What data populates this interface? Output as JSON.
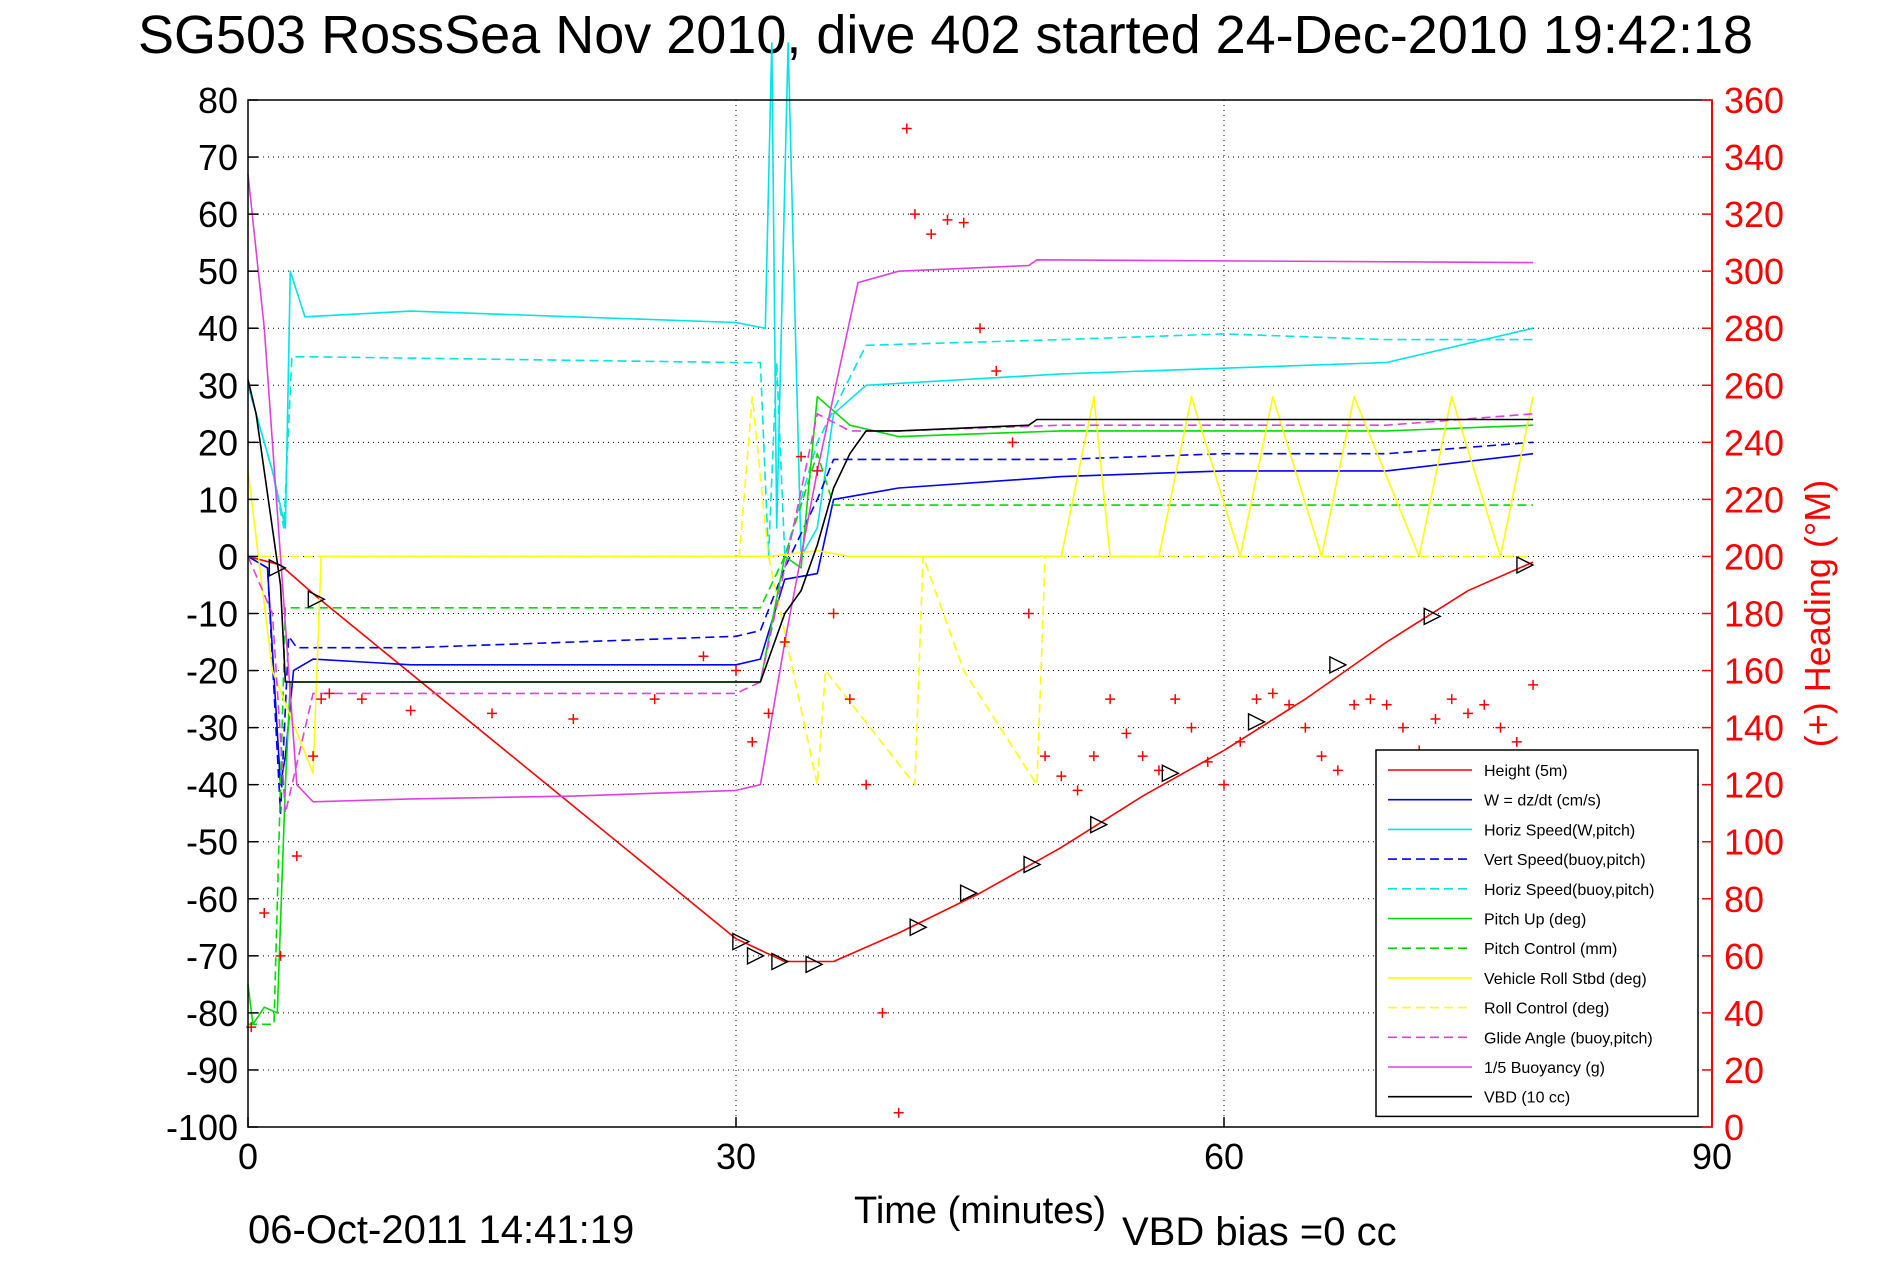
{
  "chart_data": {
    "type": "line",
    "title": "SG503 RossSea Nov 2010, dive 402 started 24-Dec-2010 19:42:18",
    "xlabel": "Time (minutes)",
    "ylabel_right": "(+) Heading (°M)",
    "xlim": [
      0,
      90
    ],
    "ylim": [
      -100,
      80
    ],
    "ylim_right": [
      0,
      360
    ],
    "x_ticks": [
      0,
      30,
      60,
      90
    ],
    "y_ticks": [
      80,
      70,
      60,
      50,
      40,
      30,
      20,
      10,
      0,
      -10,
      -20,
      -30,
      -40,
      -50,
      -60,
      -70,
      -80,
      -90,
      -100
    ],
    "y_right_ticks": [
      360,
      340,
      320,
      300,
      280,
      260,
      240,
      220,
      200,
      180,
      160,
      140,
      120,
      100,
      80,
      60,
      40,
      20,
      0
    ],
    "grid": true,
    "legend_position": "bottom-right",
    "series": [
      {
        "name": "Height (5m)",
        "color": "#ff0000",
        "style": "solid",
        "x": [
          0,
          2,
          4.2,
          30,
          33,
          36,
          40,
          45,
          50,
          55,
          60,
          65,
          70,
          75,
          79
        ],
        "y": [
          0,
          -1.5,
          -7,
          -67,
          -71,
          -71,
          -66,
          -59,
          -51,
          -42,
          -34,
          -25,
          -15,
          -6,
          -1
        ]
      },
      {
        "name": "W = dz/dt (cm/s)",
        "color": "#0000ff",
        "style": "solid",
        "x": [
          0,
          1.2,
          2,
          2.3,
          2.8,
          4,
          10,
          20,
          30,
          31.5,
          33,
          35,
          36,
          40,
          50,
          60,
          70,
          79
        ],
        "y": [
          0,
          -2,
          -40,
          -35,
          -20,
          -18,
          -19,
          -19,
          -19,
          -18,
          -4,
          -3,
          10,
          12,
          14,
          15,
          15,
          18
        ]
      },
      {
        "name": "Horiz Speed(W,pitch)",
        "color": "#00e5e5",
        "style": "solid",
        "x": [
          0,
          1.5,
          2.3,
          2.6,
          3.5,
          10,
          20,
          30,
          31.8,
          32.2,
          32.5,
          33.2,
          34,
          35,
          36,
          38,
          50,
          60,
          70,
          79
        ],
        "y": [
          30,
          15,
          5,
          50,
          42,
          43,
          42,
          41,
          40,
          90,
          5,
          90,
          0,
          5,
          25,
          30,
          32,
          33,
          34,
          40
        ]
      },
      {
        "name": "Vert Speed(buoy,pitch)",
        "color": "#0000ff",
        "style": "dashed",
        "x": [
          0,
          1.2,
          2,
          2.5,
          3,
          10,
          20,
          30,
          31.5,
          33,
          35,
          36,
          40,
          50,
          60,
          70,
          79
        ],
        "y": [
          0,
          -2,
          -45,
          -14,
          -16,
          -16,
          -15,
          -14,
          -13,
          -2,
          10,
          17,
          17,
          17,
          18,
          18,
          20
        ]
      },
      {
        "name": "Horiz Speed(buoy,pitch)",
        "color": "#00e5e5",
        "style": "dashed",
        "x": [
          0,
          1.5,
          2.2,
          2.7,
          4,
          30,
          31.5,
          32,
          32.5,
          33,
          35,
          38,
          50,
          60,
          70,
          79
        ],
        "y": [
          30,
          15,
          5,
          35,
          35,
          34,
          34,
          0,
          34,
          0,
          20,
          37,
          38,
          39,
          38,
          38
        ]
      },
      {
        "name": "Pitch Up (deg)",
        "color": "#00dd00",
        "style": "solid",
        "x": [
          0,
          0.3,
          1,
          1.8,
          2.3,
          2.6,
          5,
          20,
          30,
          31.5,
          33,
          34,
          35,
          37,
          40,
          50,
          60,
          70,
          79
        ],
        "y": [
          -75,
          -82,
          -79,
          -80,
          -40,
          -22,
          -22,
          -22,
          -22,
          -22,
          0,
          -2,
          28,
          23,
          21,
          22,
          22,
          22,
          23
        ]
      },
      {
        "name": "Pitch Control (mm)",
        "color": "#00dd00",
        "style": "dashed",
        "x": [
          0,
          1.6,
          2,
          2.3,
          10,
          31.5,
          33,
          35,
          36,
          79
        ],
        "y": [
          -82,
          -82,
          -40,
          -9,
          -9,
          -9,
          0,
          18,
          9,
          9
        ]
      },
      {
        "name": "Vehicle Roll Stbd (deg)",
        "color": "#ffff00",
        "style": "solid",
        "x": [
          0,
          1.5,
          4,
          4.5,
          30,
          31.5,
          32,
          35,
          37,
          50,
          52,
          53,
          56,
          58,
          61,
          63,
          66,
          68,
          72,
          74,
          77,
          79
        ],
        "y": [
          15,
          -20,
          -38,
          0,
          0,
          0,
          0,
          1,
          0,
          0,
          28,
          0,
          0,
          28,
          0,
          28,
          0,
          28,
          0,
          28,
          0,
          28
        ]
      },
      {
        "name": "Roll Control (deg)",
        "color": "#ffff00",
        "style": "dashed",
        "x": [
          0,
          4.2,
          30.2,
          31,
          32,
          35,
          35.5,
          41,
          41.5,
          44,
          48.5,
          49,
          79
        ],
        "y": [
          0,
          0,
          0,
          28,
          0,
          -40,
          -20,
          -40,
          0,
          -20,
          -40,
          0,
          0
        ]
      },
      {
        "name": "Glide Angle (buoy,pitch)",
        "color": "#e040e0",
        "style": "dashed",
        "x": [
          0,
          1.5,
          2.3,
          4,
          20,
          30,
          31.5,
          33,
          35,
          37,
          40,
          50,
          60,
          70,
          79
        ],
        "y": [
          0,
          -10,
          -45,
          -24,
          -24,
          -24,
          -22,
          -2,
          25,
          22,
          22,
          23,
          23,
          23,
          25
        ]
      },
      {
        "name": "1/5 Buoyancy (g)",
        "color": "#e040e0",
        "style": "solid",
        "x": [
          0,
          1,
          2,
          3,
          4,
          10,
          20,
          30,
          31.5,
          33,
          35,
          37.5,
          40,
          48,
          48.5,
          79
        ],
        "y": [
          67,
          40,
          0,
          -40,
          -43,
          -42.5,
          -42,
          -41,
          -40,
          -15,
          15,
          48,
          50,
          51,
          52,
          51.5
        ]
      },
      {
        "name": "VBD (10 cc)",
        "color": "#000000",
        "style": "solid",
        "x": [
          0,
          0.5,
          2,
          2.3,
          10,
          30,
          31.5,
          33,
          34,
          35,
          36,
          37,
          38,
          40,
          48,
          48.5,
          79
        ],
        "y": [
          31,
          25,
          -5,
          -22,
          -22,
          -22,
          -22,
          -10,
          -6,
          2,
          12,
          18,
          22,
          22,
          23,
          24,
          24
        ]
      }
    ],
    "heading": {
      "name": "(+) Heading (°M)",
      "color": "#ff0000",
      "marker": "+",
      "axis": "right",
      "x": [
        0.2,
        1,
        2,
        3,
        4,
        4.5,
        5,
        7,
        10,
        15,
        20,
        25,
        28,
        30,
        31,
        32,
        33,
        34,
        35,
        36,
        37,
        38,
        39,
        40,
        40.5,
        41,
        42,
        43,
        44,
        45,
        46,
        47,
        48,
        49,
        50,
        51,
        52,
        53,
        54,
        55,
        56,
        57,
        58,
        59,
        60,
        61,
        62,
        63,
        64,
        65,
        66,
        67,
        68,
        69,
        70,
        71,
        72,
        73,
        74,
        75,
        76,
        77,
        78,
        79
      ],
      "y": [
        35,
        75,
        60,
        95,
        130,
        150,
        152,
        150,
        146,
        145,
        143,
        150,
        165,
        160,
        135,
        145,
        170,
        235,
        230,
        180,
        150,
        120,
        40,
        5,
        350,
        320,
        313,
        318,
        317,
        280,
        265,
        240,
        180,
        130,
        123,
        118,
        130,
        150,
        138,
        130,
        125,
        150,
        140,
        128,
        120,
        135,
        150,
        152,
        148,
        140,
        130,
        125,
        148,
        150,
        148,
        140,
        132,
        143,
        150,
        145,
        148,
        140,
        135,
        155
      ]
    },
    "markers": {
      "name": "turn markers on Height trace",
      "marker": "triangle",
      "x": [
        1.8,
        4.2,
        30.3,
        31.2,
        32.7,
        34.8,
        41.2,
        44.3,
        48.2,
        52.3,
        56.7,
        62,
        67,
        72.8,
        78.5
      ],
      "y": [
        -2,
        -7.5,
        -67.5,
        -70,
        -71,
        -71.5,
        -65,
        -59,
        -54,
        -47,
        -38,
        -29,
        -19,
        -10.5,
        -1.5
      ]
    }
  },
  "footer": {
    "date_stamp": "06-Oct-2011 14:41:19",
    "vbd_bias": "VBD bias =0 cc"
  }
}
